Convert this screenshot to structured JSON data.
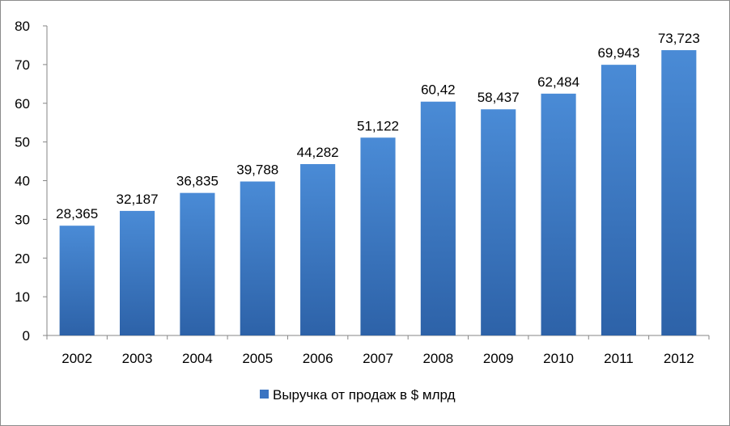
{
  "chart_data": {
    "type": "bar",
    "categories": [
      "2002",
      "2003",
      "2004",
      "2005",
      "2006",
      "2007",
      "2008",
      "2009",
      "2010",
      "2011",
      "2012"
    ],
    "series": [
      {
        "name": "Выручка от продаж в $ млрд",
        "values": [
          28.365,
          32.187,
          36.835,
          39.788,
          44.282,
          51.122,
          60.42,
          58.437,
          62.484,
          69.943,
          73.723
        ],
        "labels": [
          "28,365",
          "32,187",
          "36,835",
          "39,788",
          "44,282",
          "51,122",
          "60,42",
          "58,437",
          "62,484",
          "69,943",
          "73,723"
        ]
      }
    ],
    "ylim": [
      0,
      80
    ],
    "yticks": [
      "0",
      "10",
      "20",
      "30",
      "40",
      "50",
      "60",
      "70",
      "80"
    ],
    "grid": false,
    "legend_position": "bottom",
    "colors": {
      "bar_top": "#4a8bd6",
      "bar_bottom": "#2d62a8",
      "axis": "#868686"
    }
  }
}
